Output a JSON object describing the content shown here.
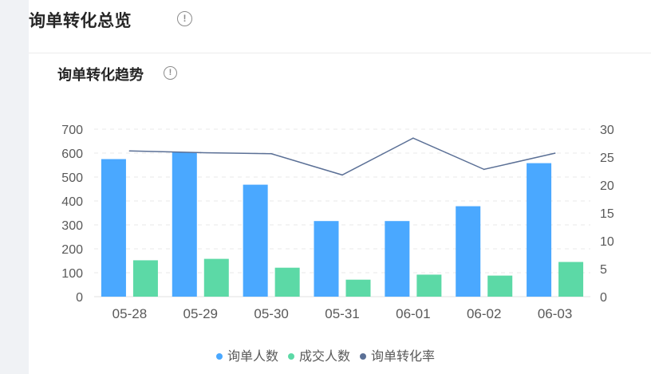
{
  "header": {
    "title": "询单转化总览",
    "info_icon": "info-circle-icon"
  },
  "section": {
    "title": "询单转化趋势",
    "info_icon": "info-circle-icon"
  },
  "colors": {
    "inquiry": "#4aa8ff",
    "deal": "#5cd9a6",
    "rate": "#5b7096"
  },
  "chart_data": {
    "type": "bar",
    "categories": [
      "05-28",
      "05-29",
      "05-30",
      "05-31",
      "06-01",
      "06-02",
      "06-03"
    ],
    "series": [
      {
        "name": "询单人数",
        "type": "bar",
        "axis": "left",
        "values": [
          575,
          605,
          468,
          316,
          316,
          378,
          558
        ]
      },
      {
        "name": "成交人数",
        "type": "bar",
        "axis": "left",
        "values": [
          152,
          158,
          121,
          71,
          92,
          88,
          145
        ]
      },
      {
        "name": "询单转化率",
        "type": "line",
        "axis": "right",
        "values": [
          26.1,
          25.8,
          25.6,
          21.8,
          28.4,
          22.8,
          25.7
        ]
      }
    ],
    "y_left": {
      "ticks": [
        "0",
        "100",
        "200",
        "300",
        "400",
        "500",
        "600",
        "700"
      ],
      "ylim": [
        0,
        700
      ]
    },
    "y_right": {
      "ticks": [
        "0",
        "5",
        "10",
        "15",
        "20",
        "25",
        "30"
      ],
      "ylim": [
        0,
        30
      ]
    },
    "grid": true,
    "legend_position": "bottom"
  }
}
